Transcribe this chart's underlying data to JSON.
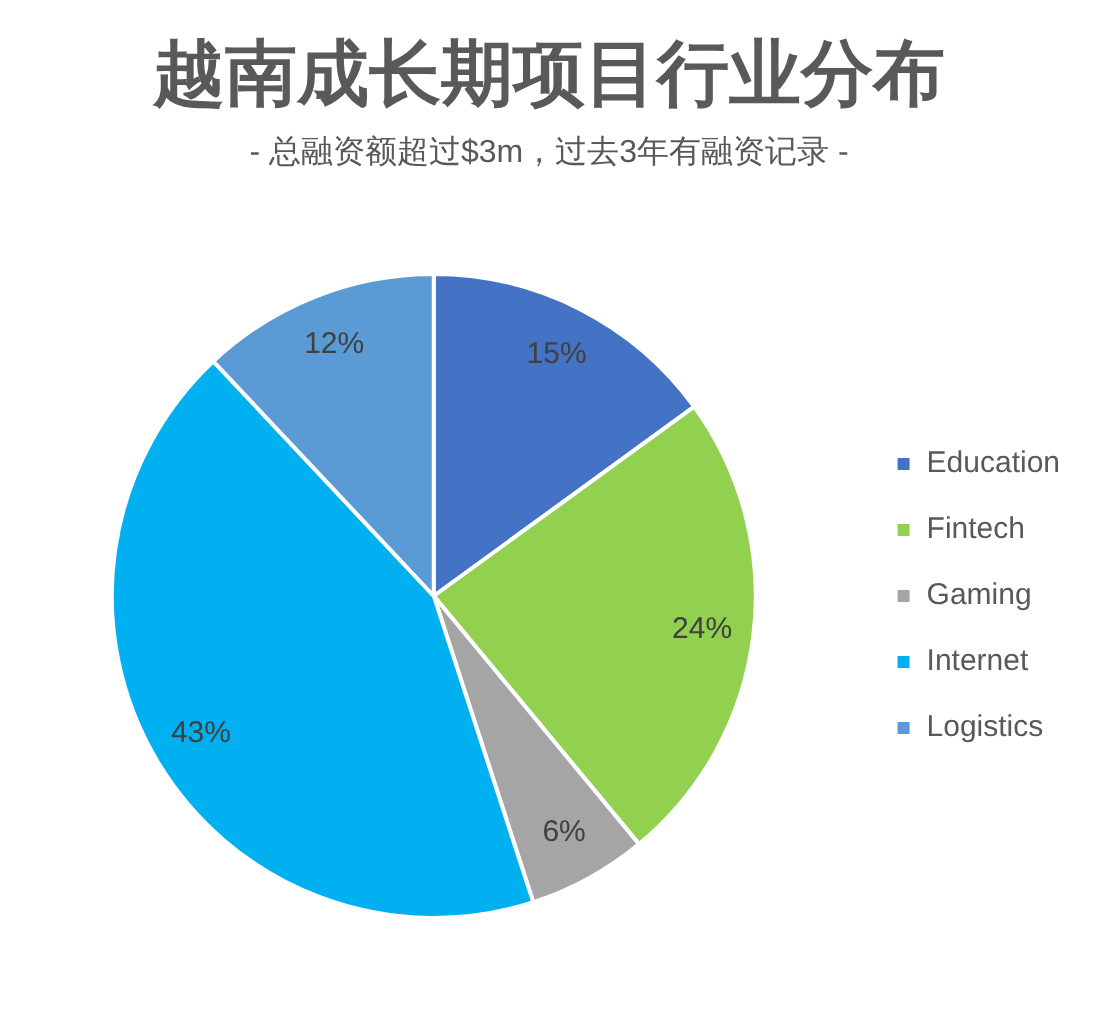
{
  "chart_data": {
    "type": "pie",
    "title": "越南成长期项目行业分布",
    "subtitle": "- 总融资额超过$3m，过去3年有融资记录 -",
    "categories": [
      "Education",
      "Fintech",
      "Gaming",
      "Internet",
      "Logistics"
    ],
    "values": [
      15,
      24,
      6,
      43,
      12
    ],
    "colors": [
      "#4472c4",
      "#92d050",
      "#a5a5a5",
      "#00b0f0",
      "#5b9bd5"
    ],
    "value_labels": [
      "15%",
      "24%",
      "6%",
      "43%",
      "12%"
    ],
    "legend": "right"
  }
}
